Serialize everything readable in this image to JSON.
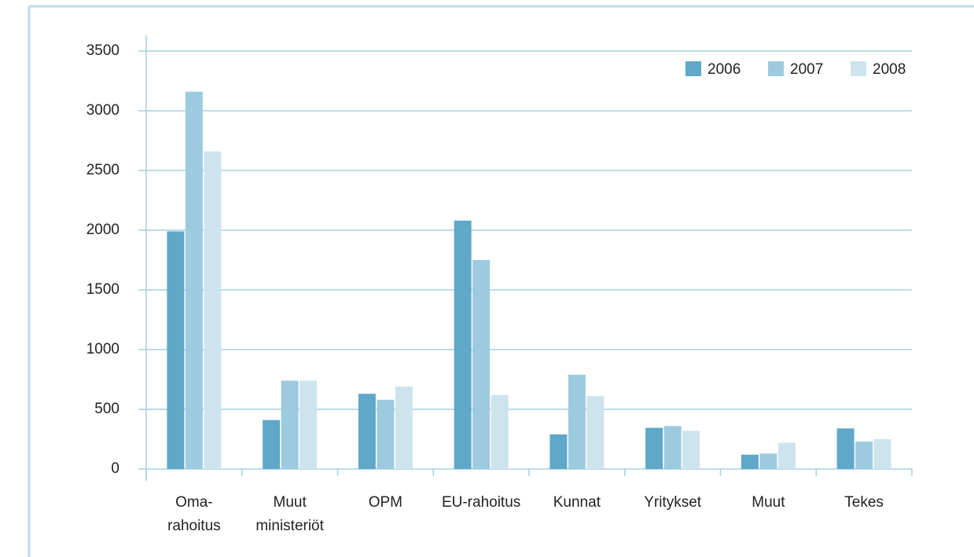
{
  "chart_data": {
    "type": "bar",
    "categories": [
      [
        "Oma-",
        "rahoitus"
      ],
      [
        "Muut",
        "ministeriöt"
      ],
      [
        "OPM"
      ],
      [
        "EU-rahoitus"
      ],
      [
        "Kunnat"
      ],
      [
        "Yritykset"
      ],
      [
        "Muut"
      ],
      [
        "Tekes"
      ]
    ],
    "series": [
      {
        "name": "2006",
        "color": "#5fa8c9",
        "values": [
          1990,
          410,
          630,
          2080,
          290,
          345,
          120,
          340
        ]
      },
      {
        "name": "2007",
        "color": "#9ccbdf",
        "values": [
          3160,
          740,
          580,
          1750,
          790,
          360,
          130,
          230
        ]
      },
      {
        "name": "2008",
        "color": "#cde4ee",
        "values": [
          2660,
          740,
          690,
          620,
          610,
          320,
          220,
          250
        ]
      }
    ],
    "ylim": [
      0,
      3500
    ],
    "yticks": [
      0,
      500,
      1000,
      1500,
      2000,
      2500,
      3000,
      3500
    ],
    "grid": true,
    "legend": "top-right"
  }
}
